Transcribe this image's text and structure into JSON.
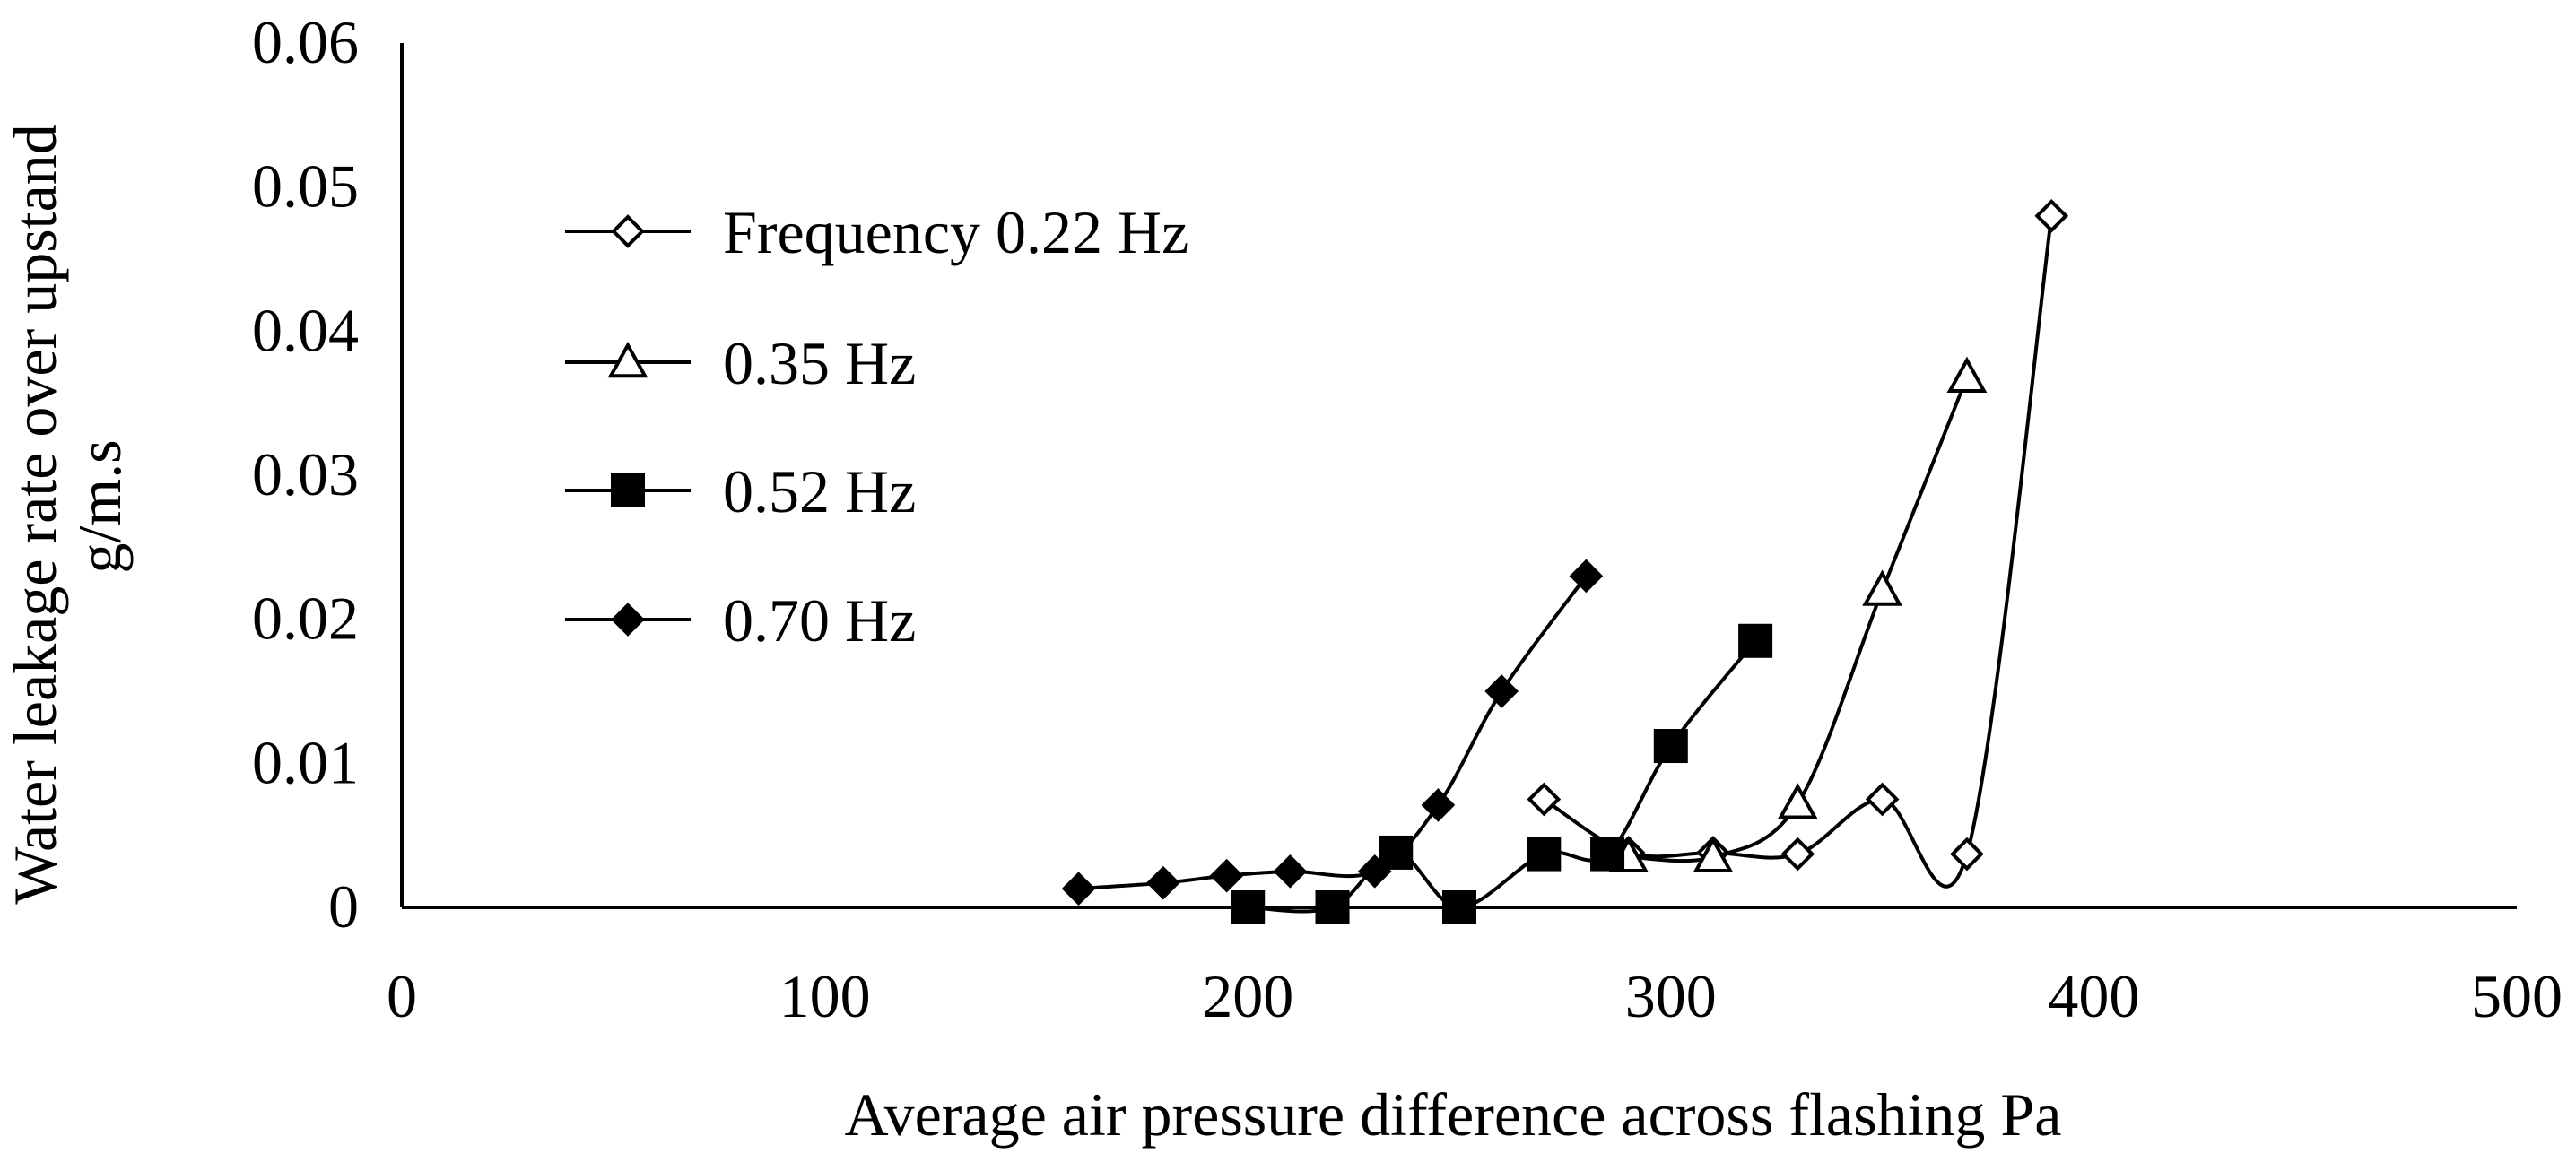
{
  "chart_data": {
    "type": "line",
    "title": "",
    "xlabel": "Average air pressure difference across flashing  Pa",
    "ylabel_lines": [
      "Water leakage rate over upstand",
      "g/m.s"
    ],
    "xlim": [
      0,
      500
    ],
    "ylim": [
      0,
      0.06
    ],
    "xticks": [
      0,
      100,
      200,
      300,
      400,
      500
    ],
    "xtick_labels": [
      "0",
      "100",
      "200",
      "300",
      "400",
      "500"
    ],
    "yticks": [
      0,
      0.01,
      0.02,
      0.03,
      0.04,
      0.05,
      0.06
    ],
    "ytick_labels": [
      "0",
      "0.01",
      "0.02",
      "0.03",
      "0.04",
      "0.05",
      "0.06"
    ],
    "grid": false,
    "legend_position": "upper-left",
    "series": [
      {
        "name": "Frequency 0.22 Hz",
        "marker": "diamond-open",
        "points": [
          [
            270,
            0.0075
          ],
          [
            290,
            0.0038
          ],
          [
            310,
            0.0038
          ],
          [
            330,
            0.0037
          ],
          [
            350,
            0.0075
          ],
          [
            370,
            0.0037
          ],
          [
            390,
            0.048
          ]
        ]
      },
      {
        "name": "0.35 Hz",
        "marker": "triangle-open",
        "points": [
          [
            290,
            0.0035
          ],
          [
            310,
            0.0035
          ],
          [
            330,
            0.0072
          ],
          [
            350,
            0.022
          ],
          [
            370,
            0.0368
          ]
        ]
      },
      {
        "name": "0.52 Hz",
        "marker": "square-filled",
        "points": [
          [
            200,
            0.0
          ],
          [
            220,
            0.0
          ],
          [
            235,
            0.0038
          ],
          [
            250,
            0.0
          ],
          [
            270,
            0.0037
          ],
          [
            285,
            0.0037
          ],
          [
            300,
            0.0112
          ],
          [
            320,
            0.0185
          ]
        ]
      },
      {
        "name": "0.70 Hz",
        "marker": "diamond-filled",
        "points": [
          [
            160,
            0.0013
          ],
          [
            180,
            0.0017
          ],
          [
            195,
            0.0022
          ],
          [
            210,
            0.0025
          ],
          [
            230,
            0.0025
          ],
          [
            245,
            0.0071
          ],
          [
            260,
            0.015
          ],
          [
            280,
            0.023
          ]
        ]
      }
    ]
  }
}
